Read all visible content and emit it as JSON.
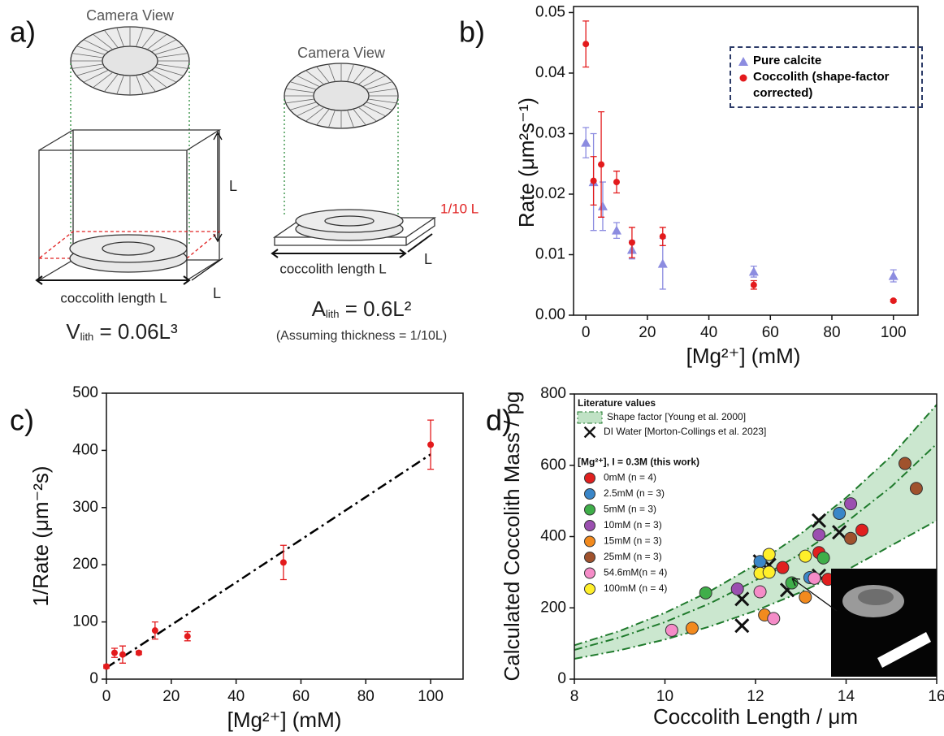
{
  "panel_a": {
    "label": "a)",
    "camera_view_left": "Camera View",
    "camera_view_right": "Camera View",
    "cube_height": "L",
    "cube_depth": "L",
    "slab_depth": "L",
    "slab_thickness": "1/10 L",
    "length_left": "coccolith length L",
    "length_right": "coccolith length L",
    "volume_symbol": "V",
    "volume_sub": "lith",
    "volume_eq": " = 0.06L³",
    "area_symbol": "A",
    "area_sub": "lith",
    "area_eq": " = 0.6L²",
    "assumption": "(Assuming thickness = 1/10L)"
  },
  "chart_data": [
    {
      "type": "scatter",
      "panel_label": "b)",
      "x_label": "[Mg²⁺] (mM)",
      "y_label": "Rate (μm²s⁻¹)",
      "xlim": [
        -4,
        108
      ],
      "ylim": [
        0,
        0.051
      ],
      "xticks": [
        0,
        20,
        40,
        60,
        80,
        100
      ],
      "yticks": [
        {
          "value": 0,
          "label": "0.00"
        },
        0.01,
        0.02,
        0.03,
        0.04,
        0.05
      ],
      "legend": "upper right",
      "series": [
        {
          "name": "Pure calcite",
          "color": "#8c8ce0",
          "marker": "triangle",
          "x": [
            0,
            2.5,
            5.5,
            10,
            15,
            25,
            54.6,
            100
          ],
          "values": [
            0.0285,
            0.022,
            0.018,
            0.014,
            0.0108,
            0.0085,
            0.0072,
            0.0065
          ],
          "errors": [
            0.0025,
            0.008,
            0.004,
            0.0013,
            0.0015,
            0.0042,
            0.0009,
            0.001
          ]
        },
        {
          "name": "Coccolith (shape-factor corrected)",
          "color": "#e31a1c",
          "marker": "circle",
          "x": [
            0,
            2.5,
            5,
            10,
            15,
            25,
            54.6,
            100
          ],
          "values": [
            0.0448,
            0.0222,
            0.0249,
            0.022,
            0.012,
            0.013,
            0.005,
            0.0024
          ],
          "errors": [
            0.0038,
            0.004,
            0.0087,
            0.0018,
            0.0025,
            0.0015,
            0.0007,
            0.0002
          ]
        }
      ]
    },
    {
      "type": "scatter",
      "panel_label": "c)",
      "x_label": "[Mg²⁺] (mM)",
      "y_label": "1/Rate (μm⁻²s)",
      "xlim": [
        0,
        110
      ],
      "ylim": [
        0,
        500
      ],
      "xticks": [
        0,
        20,
        40,
        60,
        80,
        100
      ],
      "yticks": [
        0,
        100,
        200,
        300,
        400,
        500
      ],
      "series": [
        {
          "color": "#e31a1c",
          "marker": "circle",
          "x": [
            0,
            2.5,
            5,
            10,
            15,
            25,
            54.6,
            100
          ],
          "values": [
            22,
            46,
            43,
            46,
            85,
            75,
            204,
            410
          ],
          "errors": [
            3,
            8,
            15,
            3,
            15,
            8,
            30,
            43
          ]
        }
      ],
      "fit": {
        "x": [
          0,
          100
        ],
        "y": [
          20,
          393
        ],
        "color": "#000000"
      }
    },
    {
      "type": "scatter",
      "panel_label": "d)",
      "x_label": "Coccolith Length / μm",
      "y_label": "Calculated Coccolith Mass / pg",
      "xlim": [
        8,
        16
      ],
      "ylim": [
        0,
        800
      ],
      "xticks": [
        8,
        10,
        12,
        14,
        16
      ],
      "yticks": [
        0,
        200,
        400,
        600,
        800
      ],
      "legend_titles": [
        "Literature values",
        "[Mg²⁺], I = 0.3M  (this work)"
      ],
      "bands": [
        {
          "name": "Shape factor [Young et al. 2000]",
          "color": "#2e9e3e",
          "x": [
            8,
            9,
            10,
            11,
            12,
            13,
            14,
            15,
            16
          ],
          "upper": [
            95,
            135,
            186,
            247,
            321,
            408,
            509,
            626,
            770
          ],
          "middle": [
            82,
            117,
            160,
            213,
            277,
            352,
            440,
            540,
            660
          ],
          "lower": [
            57,
            81,
            111,
            148,
            192,
            244,
            305,
            375,
            445
          ]
        }
      ],
      "series": [
        {
          "name": "DI Water [Morton-Collings et al. 2023]",
          "color": "#111111",
          "marker": "x",
          "x": [
            11.7,
            11.7,
            12.1,
            12.3,
            12.7,
            13.4,
            13.4,
            13.85
          ],
          "values": [
            225,
            150,
            330,
            320,
            250,
            445,
            290,
            412
          ]
        },
        {
          "name": "0mM (n = 4)",
          "color": "#e0201f",
          "marker": "circle",
          "x": [
            12.6,
            13.4,
            13.6,
            14.35
          ],
          "values": [
            313,
            355,
            280,
            418
          ]
        },
        {
          "name": "2.5mM (n = 3)",
          "color": "#3a86c8",
          "marker": "circle",
          "x": [
            12.1,
            13.2,
            13.85
          ],
          "values": [
            330,
            285,
            465
          ]
        },
        {
          "name": "5mM (n = 3)",
          "color": "#3fae49",
          "marker": "circle",
          "x": [
            10.9,
            12.8,
            13.5
          ],
          "values": [
            242,
            270,
            340
          ]
        },
        {
          "name": "10mM (n = 3)",
          "color": "#9b4fb0",
          "marker": "circle",
          "x": [
            11.6,
            13.4,
            14.1
          ],
          "values": [
            253,
            405,
            492
          ]
        },
        {
          "name": "15mM (n = 3)",
          "color": "#f28a1e",
          "marker": "circle",
          "x": [
            10.6,
            12.2,
            13.1
          ],
          "values": [
            143,
            180,
            230
          ]
        },
        {
          "name": "25mM (n = 3)",
          "color": "#a0522d",
          "marker": "circle",
          "x": [
            14.1,
            15.3,
            15.55
          ],
          "values": [
            395,
            605,
            535
          ]
        },
        {
          "name": "54.6mM(n = 4)",
          "color": "#f58cc8",
          "marker": "circle",
          "x": [
            10.15,
            12.1,
            12.4,
            13.3
          ],
          "values": [
            137,
            245,
            170,
            283
          ]
        },
        {
          "name": "100mM (n = 4)",
          "color": "#ffef2a",
          "marker": "circle",
          "x": [
            12.1,
            12.3,
            12.3,
            13.1
          ],
          "values": [
            297,
            300,
            350,
            345
          ]
        }
      ]
    }
  ]
}
